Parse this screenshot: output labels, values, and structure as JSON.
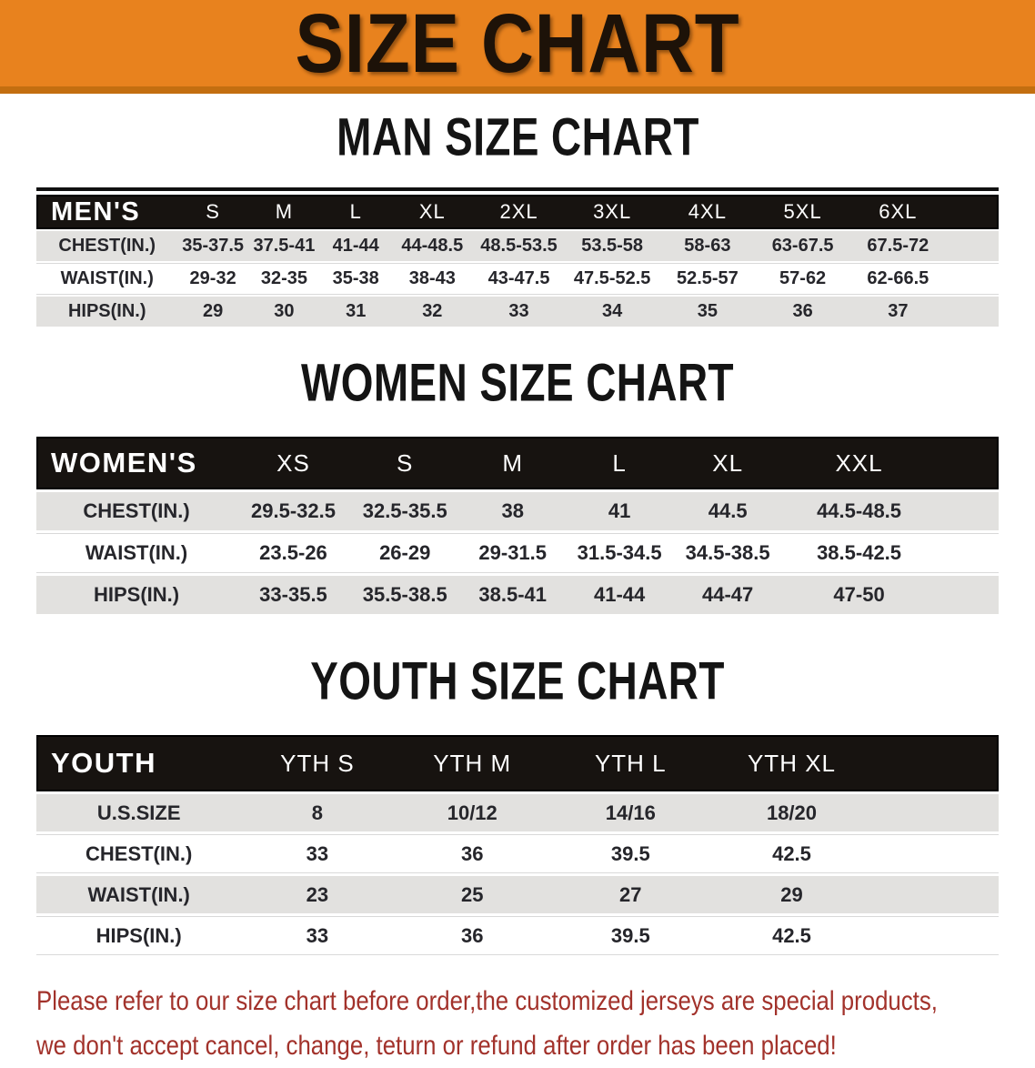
{
  "banner": {
    "title": "SIZE CHART",
    "background_color": "#E8821E",
    "bottom_strip_color": "#C36E10"
  },
  "colors": {
    "table_header_bar": "#171310",
    "row_gray": "#E2E1DF",
    "row_white": "#FFFFFF",
    "footer_red": "#A2322B",
    "heading_black": "#141414"
  },
  "chart_data": [
    {
      "type": "table",
      "title": "MAN SIZE CHART",
      "columns": [
        "MEN'S",
        "S",
        "M",
        "L",
        "XL",
        "2XL",
        "3XL",
        "4XL",
        "5XL",
        "6XL"
      ],
      "rows": [
        [
          "CHEST(IN.)",
          "35-37.5",
          "37.5-41",
          "41-44",
          "44-48.5",
          "48.5-53.5",
          "53.5-58",
          "58-63",
          "63-67.5",
          "67.5-72"
        ],
        [
          "WAIST(IN.)",
          "29-32",
          "32-35",
          "35-38",
          "38-43",
          "43-47.5",
          "47.5-52.5",
          "52.5-57",
          "57-62",
          "62-66.5"
        ],
        [
          "HIPS(IN.)",
          "29",
          "30",
          "31",
          "32",
          "33",
          "34",
          "35",
          "36",
          "37"
        ]
      ]
    },
    {
      "type": "table",
      "title": "WOMEN SIZE CHART",
      "columns": [
        "WOMEN'S",
        "XS",
        "S",
        "M",
        "L",
        "XL",
        "XXL"
      ],
      "rows": [
        [
          "CHEST(IN.)",
          "29.5-32.5",
          "32.5-35.5",
          "38",
          "41",
          "44.5",
          "44.5-48.5"
        ],
        [
          "WAIST(IN.)",
          "23.5-26",
          "26-29",
          "29-31.5",
          "31.5-34.5",
          "34.5-38.5",
          "38.5-42.5"
        ],
        [
          "HIPS(IN.)",
          "33-35.5",
          "35.5-38.5",
          "38.5-41",
          "41-44",
          "44-47",
          "47-50"
        ]
      ]
    },
    {
      "type": "table",
      "title": "YOUTH SIZE CHART",
      "columns": [
        "YOUTH",
        "YTH S",
        "YTH M",
        "YTH L",
        "YTH XL"
      ],
      "rows": [
        [
          "U.S.SIZE",
          "8",
          "10/12",
          "14/16",
          "18/20"
        ],
        [
          "CHEST(IN.)",
          "33",
          "36",
          "39.5",
          "42.5"
        ],
        [
          "WAIST(IN.)",
          "23",
          "25",
          "27",
          "29"
        ],
        [
          "HIPS(IN.)",
          "33",
          "36",
          "39.5",
          "42.5"
        ]
      ]
    }
  ],
  "footer": {
    "line1": "Please refer to our size chart before order,the customized jerseys are special products,",
    "line2": "we don't accept cancel, change, teturn or refund after order has been placed!"
  }
}
